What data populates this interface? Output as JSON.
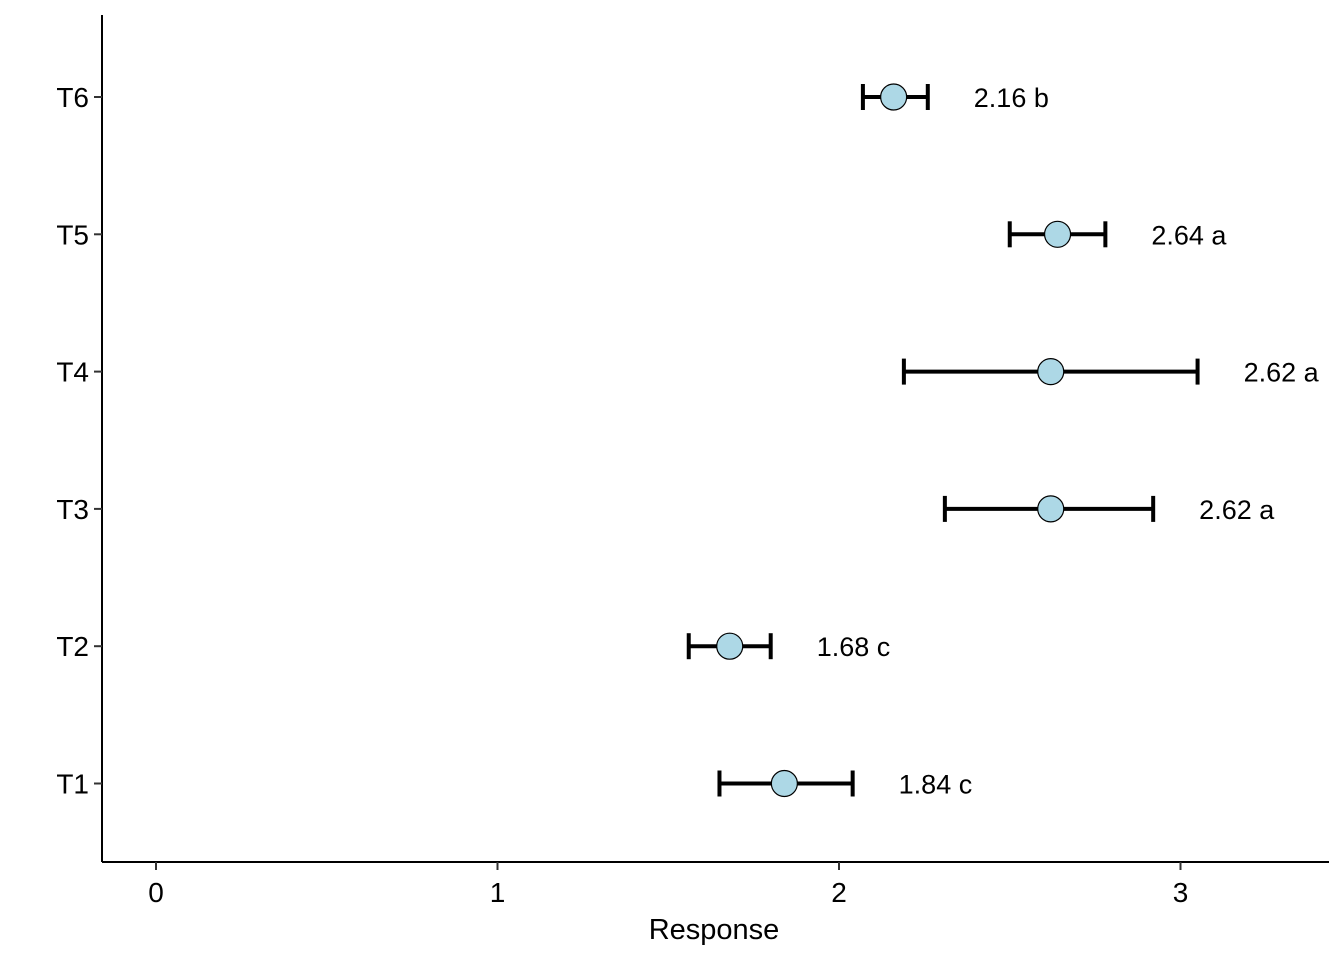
{
  "chart_data": {
    "type": "dot-errorbar",
    "title": "",
    "xlabel": "Response",
    "ylabel": "",
    "xlim": [
      -0.16,
      3.45
    ],
    "xticks": [
      "0",
      "1",
      "2",
      "3"
    ],
    "grid": false,
    "marker_color": "#add8e6",
    "categories": [
      "T1",
      "T2",
      "T3",
      "T4",
      "T5",
      "T6"
    ],
    "points": [
      {
        "group": "T1",
        "mean": 1.84,
        "lower": 1.65,
        "upper": 2.04,
        "letter": "c",
        "label": "1.84 c"
      },
      {
        "group": "T2",
        "mean": 1.68,
        "lower": 1.56,
        "upper": 1.8,
        "letter": "c",
        "label": "1.68 c"
      },
      {
        "group": "T3",
        "mean": 2.62,
        "lower": 2.31,
        "upper": 2.92,
        "letter": "a",
        "label": "2.62 a"
      },
      {
        "group": "T4",
        "mean": 2.62,
        "lower": 2.19,
        "upper": 3.05,
        "letter": "a",
        "label": "2.62 a"
      },
      {
        "group": "T5",
        "mean": 2.64,
        "lower": 2.5,
        "upper": 2.78,
        "letter": "a",
        "label": "2.64 a"
      },
      {
        "group": "T6",
        "mean": 2.16,
        "lower": 2.07,
        "upper": 2.26,
        "letter": "b",
        "label": "2.16 b"
      }
    ]
  }
}
